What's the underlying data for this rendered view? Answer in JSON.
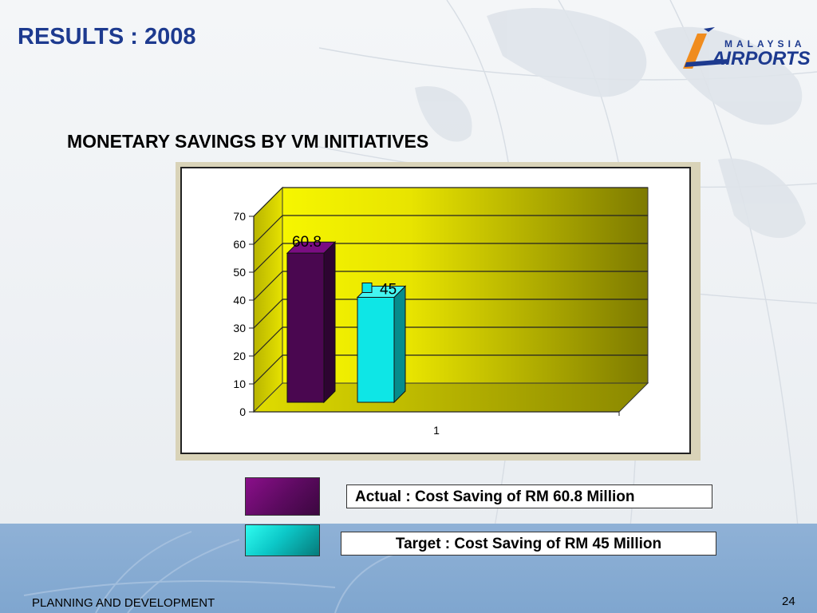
{
  "slide": {
    "title": "RESULTS : 2008",
    "subtitle": "MONETARY SAVINGS BY VM INITIATIVES",
    "footer": "PLANNING AND DEVELOPMENT",
    "page_number": "24"
  },
  "logo": {
    "top_text": "MALAYSIA",
    "main_text": "AIRPORTS"
  },
  "legend": {
    "actual_label": "Actual : Cost Saving of RM 60.8 Million",
    "target_label": "Target : Cost Saving of RM 45 Million"
  },
  "colors": {
    "title": "#1d3a8f",
    "wall": "#d8d600",
    "actual": "#5b0a5f",
    "target": "#0cc8c8"
  },
  "chart_data": {
    "type": "bar",
    "categories": [
      "1"
    ],
    "series": [
      {
        "name": "Actual",
        "values": [
          60.8
        ]
      },
      {
        "name": "Target",
        "values": [
          45
        ]
      }
    ],
    "data_labels": [
      "60.8",
      "45"
    ],
    "ylim": [
      0,
      70
    ],
    "yticks": [
      0,
      10,
      20,
      30,
      40,
      50,
      60,
      70
    ],
    "grid": true,
    "title": "",
    "xlabel": "",
    "ylabel": ""
  }
}
